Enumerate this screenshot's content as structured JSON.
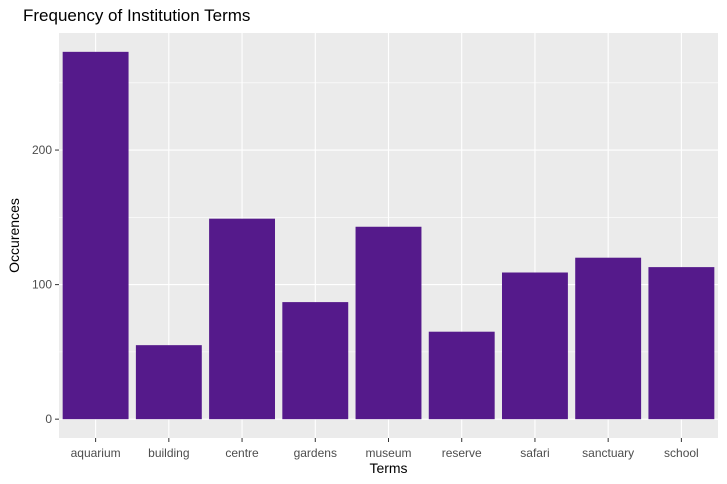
{
  "chart_data": {
    "type": "bar",
    "title": "Frequency of Institution Terms",
    "xlabel": "Terms",
    "ylabel": "Occurences",
    "categories": [
      "aquarium",
      "building",
      "centre",
      "gardens",
      "museum",
      "reserve",
      "safari",
      "sanctuary",
      "school"
    ],
    "values": [
      273,
      55,
      149,
      87,
      143,
      65,
      109,
      120,
      113
    ],
    "yticks": [
      0,
      100,
      200
    ],
    "ylim": [
      -14,
      287
    ],
    "grid": true,
    "bar_color": "#551a8b",
    "panel_color": "#ebebeb",
    "grid_color": "#ffffff"
  }
}
